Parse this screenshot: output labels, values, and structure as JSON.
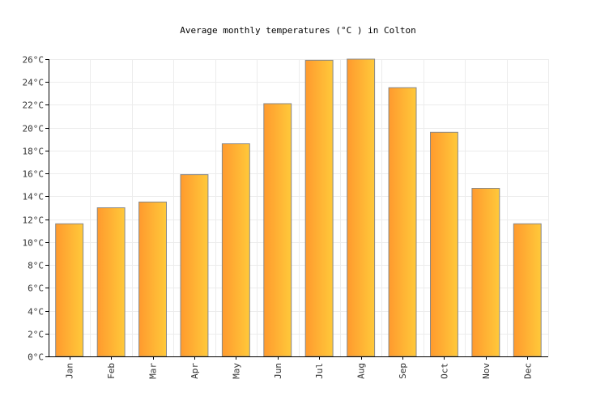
{
  "chart_data": {
    "type": "bar",
    "title": "Average monthly temperatures (°C ) in Colton",
    "xlabel": "",
    "ylabel": "",
    "categories": [
      "Jan",
      "Feb",
      "Mar",
      "Apr",
      "May",
      "Jun",
      "Jul",
      "Aug",
      "Sep",
      "Oct",
      "Nov",
      "Dec"
    ],
    "values": [
      11.6,
      13.0,
      13.5,
      15.9,
      18.6,
      22.1,
      25.9,
      26.0,
      23.5,
      19.6,
      14.7,
      11.6
    ],
    "ylim": [
      0,
      26
    ],
    "yticks": [
      "0°C",
      "2°C",
      "4°C",
      "6°C",
      "8°C",
      "10°C",
      "12°C",
      "14°C",
      "16°C",
      "18°C",
      "20°C",
      "22°C",
      "24°C",
      "26°C"
    ],
    "ytick_values": [
      0,
      2,
      4,
      6,
      8,
      10,
      12,
      14,
      16,
      18,
      20,
      22,
      24,
      26
    ],
    "grid": true,
    "legend": "none",
    "colors": {
      "bar_start": "#ff9a2e",
      "bar_end": "#ffc93a",
      "bar_border": "#888888"
    }
  }
}
